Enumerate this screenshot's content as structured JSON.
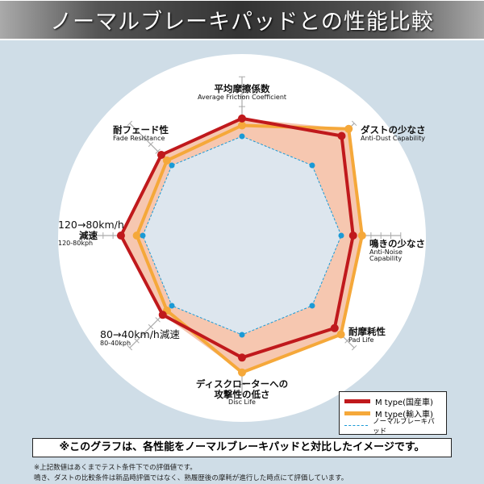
{
  "title": "ノーマルブレーキパッドとの性能比較",
  "chart_data": {
    "type": "radar",
    "title": "",
    "axes": [
      {
        "jp": "平均摩擦係数",
        "en": "Average Friction Coefficient"
      },
      {
        "jp": "ダストの少なさ",
        "en": "Anti-Dust Capability"
      },
      {
        "jp": "鳴きの少なさ",
        "en": "Anti-Noise Capability",
        "en2": "Capability",
        "en1": "Anti-Noise"
      },
      {
        "jp": "耐摩耗性",
        "en": "Pad Life"
      },
      {
        "jp": "ディスクローターへの",
        "jp2": "攻撃性の低さ",
        "en": "Disc Life"
      },
      {
        "jp": "80→40km/h減速",
        "en": "80-40kph"
      },
      {
        "jp": "120→80km/h",
        "jp2": "減速",
        "en": "120-80kph"
      },
      {
        "jp": "耐フェード性",
        "en": "Fade Resistance"
      }
    ],
    "series": [
      {
        "name": "M type(国産車)",
        "color": "#c0191c",
        "values": [
          118,
          142,
          112,
          132,
          123,
          113,
          122,
          115
        ]
      },
      {
        "name": "M type(輸入車)",
        "color": "#f5a83a",
        "values": [
          111,
          152,
          121,
          141,
          138,
          107,
          106,
          107
        ]
      },
      {
        "name": "ノーマルブレーキパッド",
        "color": "#1a9ad6",
        "style": "dashed",
        "values": [
          100,
          100,
          100,
          100,
          100,
          100,
          100,
          100
        ]
      }
    ],
    "fill_color": "#f6c7b0",
    "inner_fill_color": "#dde6ee",
    "grid": true,
    "legend_position": "bottom-right"
  },
  "note": "※このグラフは、各性能をノーマルブレーキパッドと対比したイメージです。",
  "footnotes": [
    "※上記数値はあくまでテスト条件下での評価値です。",
    "鳴き、ダストの比較条件は新品時評価ではなく、熟履歴後の摩耗が進行した時点にて評価しています。"
  ]
}
